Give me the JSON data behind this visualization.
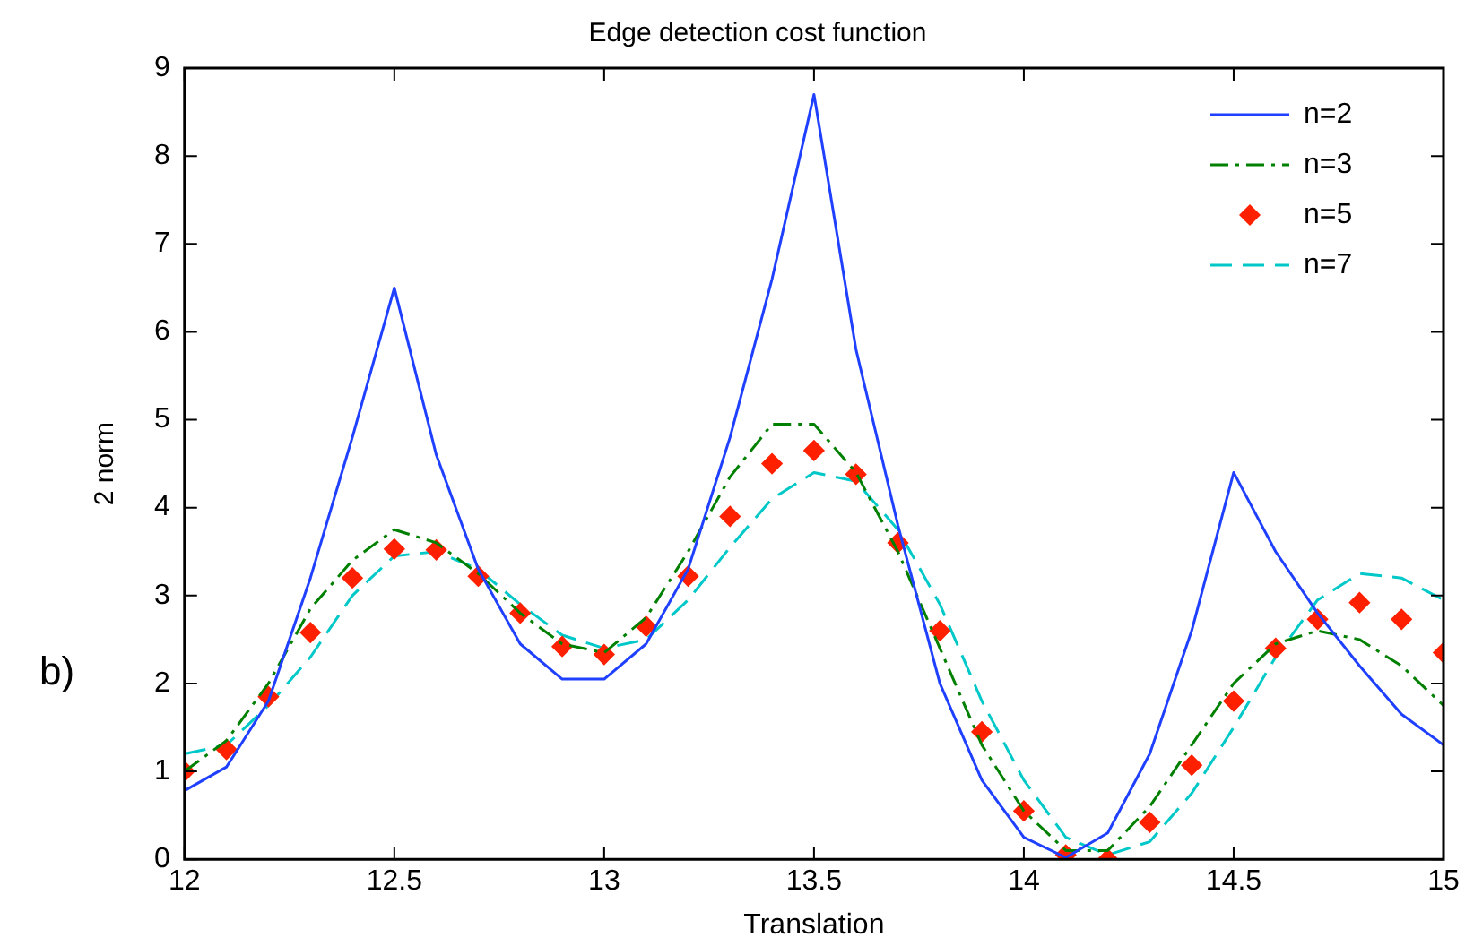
{
  "chart_data": {
    "type": "line",
    "title": "Edge detection cost function",
    "xlabel": "Translation",
    "ylabel": "2 norm",
    "annotations": [
      "b)"
    ],
    "x": [
      12,
      12.1,
      12.2,
      12.3,
      12.4,
      12.5,
      12.6,
      12.7,
      12.8,
      12.9,
      13,
      13.1,
      13.2,
      13.3,
      13.4,
      13.5,
      13.6,
      13.7,
      13.8,
      13.9,
      14,
      14.1,
      14.2,
      14.3,
      14.4,
      14.5,
      14.6,
      14.7,
      14.8,
      14.9,
      15
    ],
    "series": [
      {
        "name": "n=2",
        "color": "#2040ff",
        "line_style": "solid",
        "marker": "none",
        "values": [
          0.78,
          1.05,
          1.8,
          3.2,
          4.8,
          6.5,
          4.6,
          3.3,
          2.45,
          2.05,
          2.05,
          2.45,
          3.3,
          4.8,
          6.6,
          8.7,
          5.8,
          3.8,
          2.0,
          0.9,
          0.25,
          0.02,
          0.3,
          1.2,
          2.6,
          4.4,
          3.5,
          2.8,
          2.2,
          1.65,
          1.3
        ]
      },
      {
        "name": "n=3",
        "color": "#008000",
        "line_style": "dashdot",
        "marker": "none",
        "values": [
          1.0,
          1.35,
          2.0,
          2.85,
          3.4,
          3.75,
          3.6,
          3.25,
          2.8,
          2.45,
          2.35,
          2.75,
          3.5,
          4.35,
          4.95,
          4.95,
          4.4,
          3.5,
          2.4,
          1.3,
          0.55,
          0.1,
          0.1,
          0.6,
          1.3,
          2.0,
          2.45,
          2.6,
          2.5,
          2.2,
          1.75
        ]
      },
      {
        "name": "n=5",
        "type": "scatter",
        "color": "#ff2000",
        "marker": "diamond",
        "values": [
          1.0,
          1.25,
          1.85,
          2.58,
          3.2,
          3.53,
          3.52,
          3.22,
          2.8,
          2.42,
          2.33,
          2.65,
          3.22,
          3.9,
          4.5,
          4.65,
          4.38,
          3.6,
          2.6,
          1.45,
          0.55,
          0.05,
          0.0,
          0.42,
          1.07,
          1.8,
          2.4,
          2.73,
          2.92,
          2.73,
          2.35
        ]
      },
      {
        "name": "n=7",
        "color": "#00c8c8",
        "line_style": "dashed",
        "marker": "none",
        "values": [
          1.2,
          1.3,
          1.75,
          2.3,
          3.0,
          3.45,
          3.5,
          3.3,
          2.9,
          2.55,
          2.4,
          2.5,
          2.95,
          3.55,
          4.1,
          4.4,
          4.3,
          3.75,
          2.9,
          1.8,
          0.9,
          0.25,
          0.05,
          0.2,
          0.75,
          1.5,
          2.3,
          2.95,
          3.25,
          3.2,
          2.95
        ]
      }
    ],
    "xlim": [
      12,
      15
    ],
    "xticks": [
      12,
      12.5,
      13,
      13.5,
      14,
      14.5,
      15
    ],
    "ylim": [
      0,
      9
    ],
    "yticks": [
      0,
      1,
      2,
      3,
      4,
      5,
      6,
      7,
      8,
      9
    ],
    "grid": false,
    "legend": "top right"
  }
}
